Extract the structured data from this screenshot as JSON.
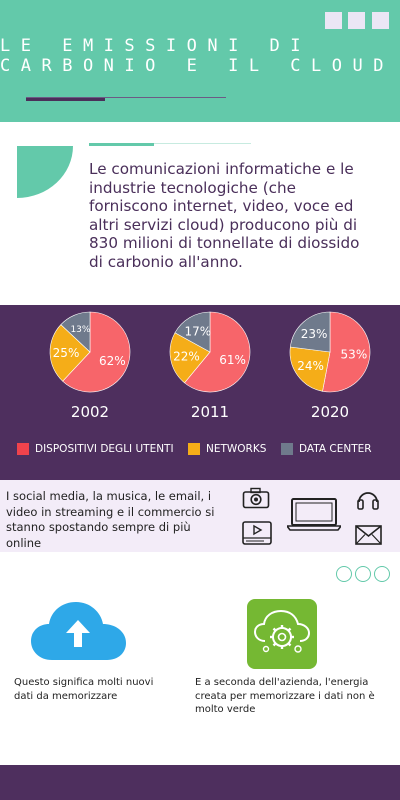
{
  "header": {
    "title_line1": "LE EMISSIONI DI",
    "title_line2": "CARBONIO E IL CLOUD"
  },
  "intro": {
    "text": "Le comunicazioni informatiche e le industrie tecnologiche (che forniscono internet, video, voce ed altri servizi cloud) producono più di 830 milioni di tonnellate di diossido di carbonio all'anno."
  },
  "colors": {
    "teal": "#63c9aa",
    "purple": "#4e2f5e",
    "red": "#f7656a",
    "orange": "#f5ad18",
    "gray": "#6f7a8c"
  },
  "chart_data": [
    {
      "type": "pie",
      "title": "2002",
      "categories": [
        "DISPOSITIVI DEGLI UTENTI",
        "NETWORKS",
        "DATA CENTER"
      ],
      "values": [
        62,
        25,
        13
      ]
    },
    {
      "type": "pie",
      "title": "2011",
      "categories": [
        "DISPOSITIVI DEGLI UTENTI",
        "NETWORKS",
        "DATA CENTER"
      ],
      "values": [
        61,
        22,
        17
      ]
    },
    {
      "type": "pie",
      "title": "2020",
      "categories": [
        "DISPOSITIVI DEGLI UTENTI",
        "NETWORKS",
        "DATA CENTER"
      ],
      "values": [
        53,
        24,
        23
      ]
    }
  ],
  "legend": {
    "items": [
      {
        "label": "DISPOSITIVI DEGLI UTENTI",
        "color": "#f0434c"
      },
      {
        "label": "NETWORKS",
        "color": "#f5ad18"
      },
      {
        "label": "DATA CENTER",
        "color": "#6f7a8c"
      }
    ]
  },
  "media": {
    "text": "I social media, la musica, le email, i video in streaming e il commercio si stanno spostando sempre di più online",
    "icons": [
      "camera-icon",
      "laptop-icon",
      "headphones-icon",
      "video-player-icon",
      "mail-icon"
    ]
  },
  "storage": {
    "caption_left": "Questo significa molti nuovi dati da memorizzare",
    "caption_right": "E a seconda dell'azienda, l'energia creata per memorizzare i dati non è molto verde"
  }
}
